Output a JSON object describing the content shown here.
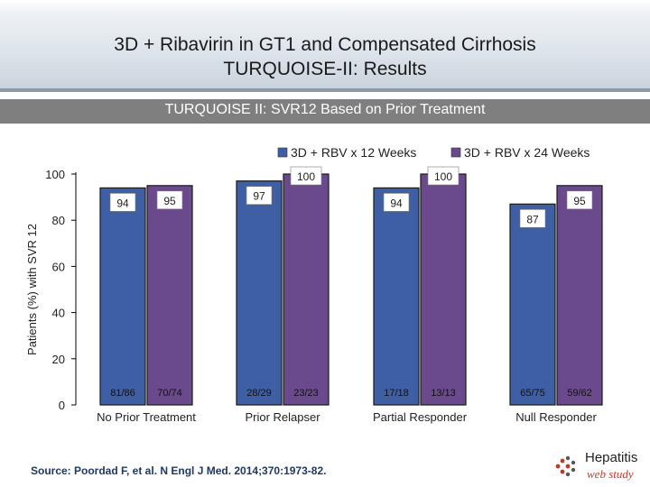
{
  "header": {
    "title_line1": "3D + Ribavirin in GT1 and Compensated Cirrhosis",
    "title_line2": "TURQUOISE-II: Results"
  },
  "subtitle": "TURQUOISE II: SVR12 Based on Prior Treatment",
  "colors": {
    "series_12wk": "#3e5fa3",
    "series_24wk": "#6a4a8c",
    "bar_outline": "#1a1a1a",
    "brand_red": "#c0392b"
  },
  "chart_data": {
    "type": "bar",
    "title": "TURQUOISE II: SVR12 Based on Prior Treatment",
    "xlabel": "",
    "ylabel": "Patients (%) with SVR 12",
    "ylim": [
      0,
      100
    ],
    "yticks": [
      0,
      20,
      40,
      60,
      80,
      100
    ],
    "grid": false,
    "legend_position": "top-right",
    "categories": [
      "No Prior Treatment",
      "Prior Relapser",
      "Partial Responder",
      "Null Responder"
    ],
    "series": [
      {
        "name": "3D + RBV x 12 Weeks",
        "color": "#3e5fa3",
        "values": [
          94,
          97,
          94,
          87
        ],
        "value_labels": [
          "94",
          "97",
          "94",
          "87"
        ],
        "counts": [
          "81/86",
          "28/29",
          "17/18",
          "65/75"
        ]
      },
      {
        "name": "3D + RBV x 24 Weeks",
        "color": "#6a4a8c",
        "values": [
          95,
          100,
          100,
          95
        ],
        "value_labels": [
          "95",
          "100",
          "100",
          "95"
        ],
        "counts": [
          "70/74",
          "23/23",
          "13/13",
          "59/62"
        ]
      }
    ]
  },
  "footer": {
    "source": "Source: Poordad F, et al. N Engl J Med. 2014;370:1973-82.",
    "logo_text1": "Hepatitis",
    "logo_text2": "web study",
    "logo_icon": "hepatitis-logo-icon"
  }
}
